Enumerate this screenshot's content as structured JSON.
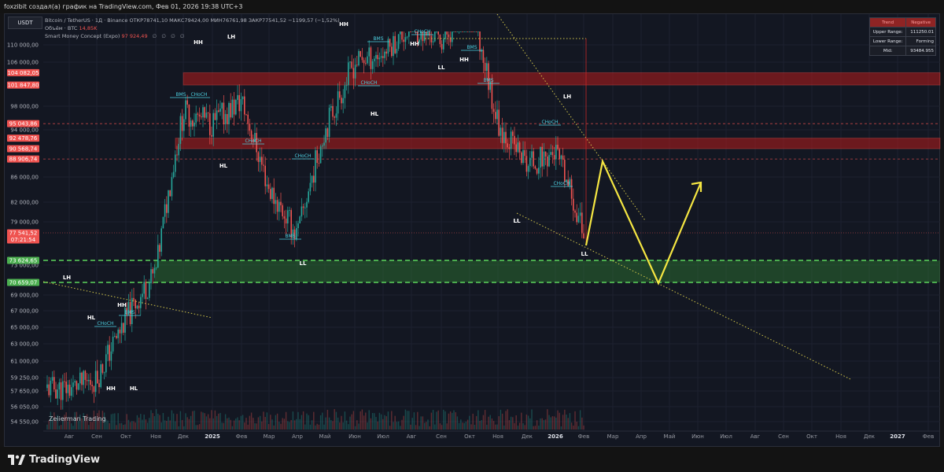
{
  "header": {
    "caption": "foxzibit создал(а) график на TradingView.com, Фев 01, 2026 19:38 UTC+3"
  },
  "symbol": "USDT",
  "legend": {
    "title": "Bitcoin / TetherUS · 1Д · Binance",
    "ohlc": "ОТКР78741,10 МАКС79424,00 МИН76761,98 ЗАКР77541,52 −1199,57 (−1,52%)",
    "volume_label": "Объём · BTC",
    "volume_value": "14,85K",
    "indicator_label": "Smart Money Concept (Expo)",
    "indicator_value": "97 924,49",
    "indicator_symbols": "∅ ∅ ∅ ∅"
  },
  "info_table": {
    "trend_label": "Trend",
    "trend_value": "Negative",
    "upper_label": "Upper Range:",
    "upper_value": "111250.01",
    "lower_label": "Lower Range:",
    "lower_value": "Forming",
    "mid_label": "Mid:",
    "mid_value": "93484.955"
  },
  "watermark": "Zeiierman Trading",
  "brand": "TradingView",
  "colors": {
    "bg": "#131722",
    "resistance_zone": "#ef5350",
    "support_zone": "#4caf50",
    "projection": "#f5e642",
    "trendline": "#d4c84a",
    "bull": "#26a69a",
    "bear": "#ef5350"
  },
  "chart_data": {
    "type": "line",
    "title": "Bitcoin / TetherUS · 1Д · Binance",
    "y_axis_ticks": [
      110000,
      106000,
      98000,
      94000,
      86000,
      82000,
      79000,
      73000,
      69000,
      67000,
      65000,
      63000,
      61000,
      59250,
      57650,
      56050,
      54550
    ],
    "y_axis_tick_labels": [
      "110 000,00",
      "106 000,00",
      "98 000,00",
      "94 000,00",
      "86 000,00",
      "82 000,00",
      "79 000,00",
      "73 000,00",
      "69 000,00",
      "67 000,00",
      "65 000,00",
      "63 000,00",
      "61 000,00",
      "59 250,00",
      "57 650,00",
      "56 050,00",
      "54 550,00"
    ],
    "x_axis_labels": [
      "Авг",
      "Сен",
      "Окт",
      "Ноя",
      "Дек",
      "2025",
      "Фев",
      "Мар",
      "Апр",
      "Май",
      "Июн",
      "Июл",
      "Авг",
      "Сен",
      "Окт",
      "Ноя",
      "Дек",
      "2026",
      "Фев",
      "Мар",
      "Апр",
      "Май",
      "Июн",
      "Июл",
      "Авг",
      "Сен",
      "Окт",
      "Ноя",
      "Дек",
      "2027",
      "Фев"
    ],
    "price_tags": [
      {
        "label": "104 082,05",
        "value": 104082.05,
        "color": "#ef5350"
      },
      {
        "label": "101 847,80",
        "value": 101847.8,
        "color": "#ef5350"
      },
      {
        "label": "95 043,86",
        "value": 95043.86,
        "color": "#ef5350"
      },
      {
        "label": "92 478,76",
        "value": 92478.76,
        "color": "#ef5350"
      },
      {
        "label": "90 568,74",
        "value": 90568.74,
        "color": "#ef5350"
      },
      {
        "label": "88 906,74",
        "value": 88906.74,
        "color": "#ef5350"
      },
      {
        "label": "77 541,52",
        "value": 77541.52,
        "color": "#ef5350",
        "sub": "07:21:54"
      },
      {
        "label": "73 624,65",
        "value": 73624.65,
        "color": "#4caf50"
      },
      {
        "label": "70 659,07",
        "value": 70659.07,
        "color": "#4caf50"
      }
    ],
    "zones": [
      {
        "name": "resistance-upper",
        "from": 101847.8,
        "to": 104082.05,
        "color": "#ef5350"
      },
      {
        "name": "resistance-lower",
        "from": 90568.74,
        "to": 92478.76,
        "color": "#ef5350"
      },
      {
        "name": "support",
        "from": 70659.07,
        "to": 73624.65,
        "color": "#4caf50"
      }
    ],
    "structure_labels": [
      "LH",
      "HH",
      "LH",
      "HL",
      "HH",
      "HH",
      "HL",
      "HH",
      "HL",
      "LL",
      "HH",
      "HH",
      "LL",
      "LL",
      "HL",
      "LH",
      "LL",
      "LL"
    ],
    "structure_tags": [
      "CHoCH",
      "BMS",
      "BMS",
      "CHoCH",
      "CHoCH",
      "BMS",
      "BMS",
      "CHoCH",
      "BMS",
      "CHoCH",
      "BMS",
      "CHoCH",
      "CHoCH",
      "CHoCH"
    ],
    "price_path": [
      [
        "Авг",
        58000
      ],
      [
        "Сен",
        59000
      ],
      [
        "Окт",
        66000
      ],
      [
        "Ноя",
        72000
      ],
      [
        "Дек",
        97000
      ],
      [
        "2025",
        95000
      ],
      [
        "Фев",
        99000
      ],
      [
        "Мар",
        84000
      ],
      [
        "Апр",
        77000
      ],
      [
        "Май",
        94000
      ],
      [
        "Июн",
        106000
      ],
      [
        "Июл",
        108000
      ],
      [
        "Авг",
        114000
      ],
      [
        "Сен",
        111000
      ],
      [
        "Окт",
        118000
      ],
      [
        "Ноя",
        95000
      ],
      [
        "Дек",
        88000
      ],
      [
        "2026",
        90000
      ],
      [
        "Фев",
        77541.52
      ]
    ],
    "projection_path": [
      [
        "Фев",
        76000
      ],
      [
        "Мар",
        88000
      ],
      [
        "Апр",
        71000
      ],
      [
        "Июн",
        84000
      ]
    ]
  }
}
